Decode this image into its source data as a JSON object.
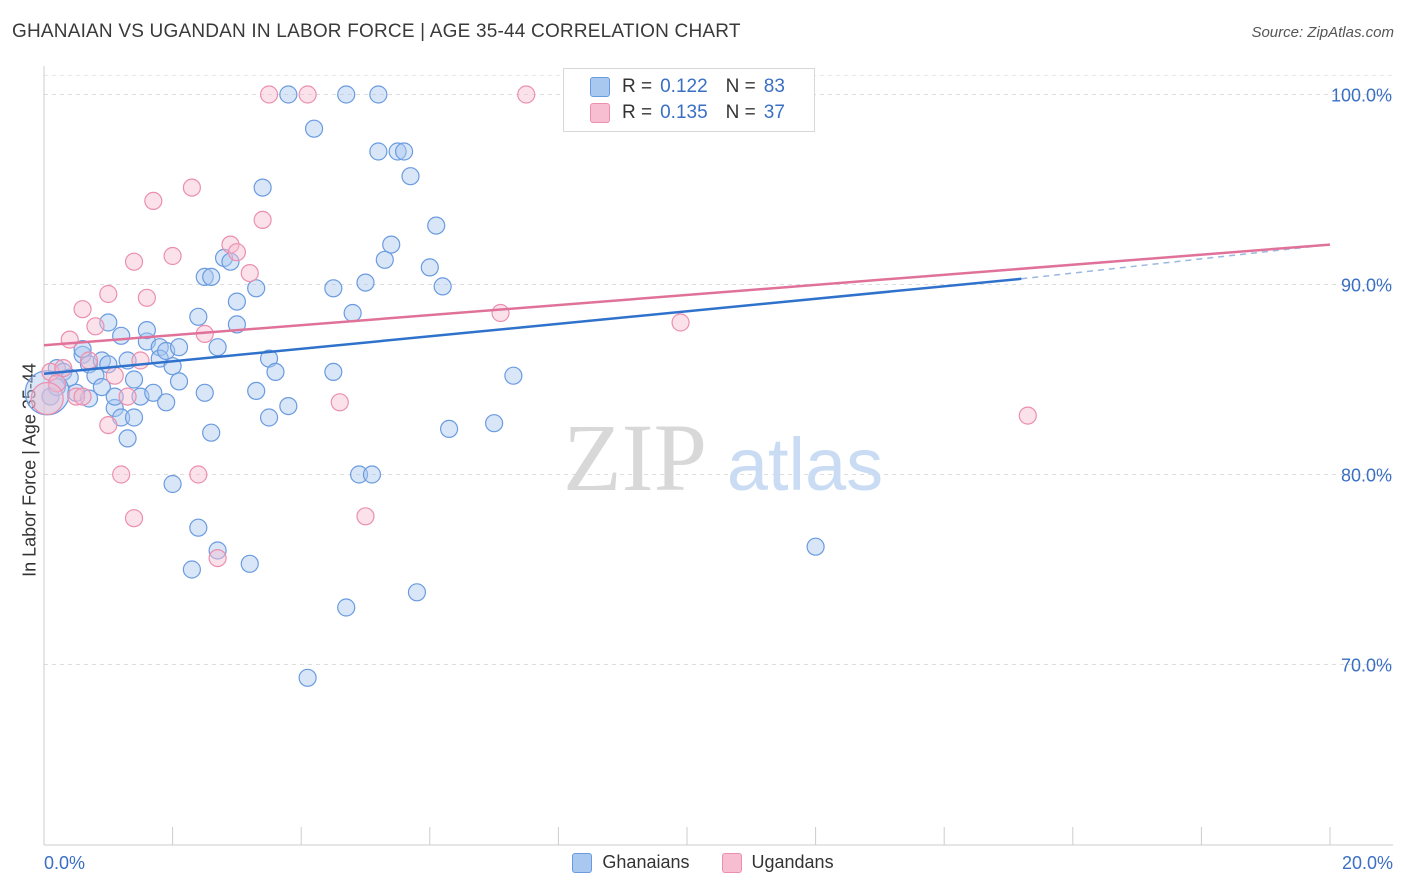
{
  "title": "GHANAIAN VS UGANDAN IN LABOR FORCE | AGE 35-44 CORRELATION CHART",
  "source": "Source: ZipAtlas.com",
  "watermark": {
    "zip": "ZIP",
    "atlas": "atlas"
  },
  "legend_top": [
    {
      "r_label": "R =",
      "r_value": "0.122",
      "n_label": "N =",
      "n_value": "83"
    },
    {
      "r_label": "R =",
      "r_value": "0.135",
      "n_label": "N =",
      "n_value": "37"
    }
  ],
  "colors": {
    "blue_fill": "#a8c8f0",
    "blue_stroke": "#6a9be0",
    "blue_line": "#2f72cc",
    "pink_fill": "#f7bdd0",
    "pink_stroke": "#ec8fae",
    "pink_line": "#e0729a",
    "tick_label": "#3a6fc4",
    "grid": "#dddddd"
  },
  "chart_data": {
    "type": "scatter",
    "title": "GHANAIAN VS UGANDAN IN LABOR FORCE | AGE 35-44 CORRELATION CHART",
    "xlabel": "",
    "ylabel": "In Labor Force | Age 35-44",
    "xlim": [
      0,
      20
    ],
    "ylim": [
      60.5,
      101.5
    ],
    "x_tick_labels": [
      "0.0%",
      "20.0%"
    ],
    "y_ticks": [
      70,
      80,
      90,
      100
    ],
    "y_tick_labels": [
      "70.0%",
      "80.0%",
      "90.0%",
      "100.0%"
    ],
    "grid": true,
    "legend_position": "top-center",
    "series": [
      {
        "name": "Ghanaians",
        "color": "#a8c8f0",
        "points": [
          [
            0.1,
            84.1
          ],
          [
            0.2,
            84.6
          ],
          [
            0.2,
            85.6
          ],
          [
            0.3,
            85.4
          ],
          [
            0.4,
            85.1
          ],
          [
            0.5,
            84.3
          ],
          [
            0.6,
            86.3
          ],
          [
            0.6,
            86.6
          ],
          [
            0.7,
            85.8
          ],
          [
            0.7,
            84.0
          ],
          [
            0.8,
            85.2
          ],
          [
            0.9,
            86.0
          ],
          [
            0.9,
            84.6
          ],
          [
            1.0,
            88.0
          ],
          [
            1.0,
            85.8
          ],
          [
            1.1,
            83.5
          ],
          [
            1.1,
            84.1
          ],
          [
            1.2,
            87.3
          ],
          [
            1.2,
            83.0
          ],
          [
            1.3,
            81.9
          ],
          [
            1.3,
            86.0
          ],
          [
            1.4,
            85.0
          ],
          [
            1.4,
            83.0
          ],
          [
            1.5,
            84.1
          ],
          [
            1.6,
            87.0
          ],
          [
            1.6,
            87.6
          ],
          [
            1.7,
            84.3
          ],
          [
            1.8,
            86.7
          ],
          [
            1.8,
            86.1
          ],
          [
            1.9,
            83.8
          ],
          [
            1.9,
            86.5
          ],
          [
            2.0,
            79.5
          ],
          [
            2.0,
            85.7
          ],
          [
            2.1,
            86.7
          ],
          [
            2.1,
            84.9
          ],
          [
            2.3,
            75.0
          ],
          [
            2.4,
            77.2
          ],
          [
            2.4,
            88.3
          ],
          [
            2.5,
            84.3
          ],
          [
            2.5,
            90.4
          ],
          [
            2.6,
            82.2
          ],
          [
            2.6,
            90.4
          ],
          [
            2.7,
            86.7
          ],
          [
            2.7,
            76.0
          ],
          [
            2.8,
            91.4
          ],
          [
            2.9,
            91.2
          ],
          [
            3.0,
            89.1
          ],
          [
            3.0,
            87.9
          ],
          [
            3.2,
            75.3
          ],
          [
            3.3,
            84.4
          ],
          [
            3.3,
            89.8
          ],
          [
            3.4,
            95.1
          ],
          [
            3.5,
            83.0
          ],
          [
            3.5,
            86.1
          ],
          [
            3.6,
            85.4
          ],
          [
            3.8,
            83.6
          ],
          [
            3.8,
            100.0
          ],
          [
            4.1,
            69.3
          ],
          [
            4.2,
            98.2
          ],
          [
            4.5,
            85.4
          ],
          [
            4.5,
            89.8
          ],
          [
            4.7,
            100.0
          ],
          [
            4.7,
            73.0
          ],
          [
            4.8,
            88.5
          ],
          [
            4.9,
            80.0
          ],
          [
            5.0,
            90.1
          ],
          [
            5.1,
            80.0
          ],
          [
            5.2,
            100.0
          ],
          [
            5.2,
            97.0
          ],
          [
            5.3,
            91.3
          ],
          [
            5.4,
            92.1
          ],
          [
            5.5,
            97.0
          ],
          [
            5.6,
            97.0
          ],
          [
            5.7,
            95.7
          ],
          [
            5.8,
            73.8
          ],
          [
            6.0,
            90.9
          ],
          [
            6.1,
            93.1
          ],
          [
            6.2,
            89.9
          ],
          [
            6.3,
            82.4
          ],
          [
            7.0,
            82.7
          ],
          [
            7.3,
            85.2
          ],
          [
            12.0,
            76.2
          ],
          [
            0.05,
            84.3
          ]
        ]
      },
      {
        "name": "Ugandans",
        "color": "#f7bdd0",
        "points": [
          [
            0.1,
            85.4
          ],
          [
            0.2,
            84.8
          ],
          [
            0.3,
            85.6
          ],
          [
            0.4,
            87.1
          ],
          [
            0.5,
            84.1
          ],
          [
            0.6,
            84.1
          ],
          [
            0.6,
            88.7
          ],
          [
            0.7,
            86.0
          ],
          [
            0.8,
            87.8
          ],
          [
            1.0,
            89.5
          ],
          [
            1.0,
            82.6
          ],
          [
            1.1,
            85.2
          ],
          [
            1.2,
            80.0
          ],
          [
            1.3,
            84.1
          ],
          [
            1.4,
            77.7
          ],
          [
            1.4,
            91.2
          ],
          [
            1.5,
            86.0
          ],
          [
            1.6,
            89.3
          ],
          [
            1.7,
            94.4
          ],
          [
            2.0,
            91.5
          ],
          [
            2.3,
            95.1
          ],
          [
            2.4,
            80.0
          ],
          [
            2.5,
            87.4
          ],
          [
            2.7,
            75.6
          ],
          [
            2.9,
            92.1
          ],
          [
            3.0,
            91.7
          ],
          [
            3.2,
            90.6
          ],
          [
            3.4,
            93.4
          ],
          [
            3.5,
            100.0
          ],
          [
            4.1,
            100.0
          ],
          [
            4.6,
            83.8
          ],
          [
            5.0,
            77.8
          ],
          [
            7.1,
            88.5
          ],
          [
            7.5,
            100.0
          ],
          [
            9.9,
            88.0
          ],
          [
            15.3,
            83.1
          ],
          [
            0.05,
            84.0
          ]
        ]
      }
    ],
    "trendlines": [
      {
        "series": "Ghanaians",
        "x": [
          0,
          15.2
        ],
        "y": [
          85.3,
          90.3
        ],
        "dashed_extension_to": [
          20,
          92.1
        ]
      },
      {
        "series": "Ugandans",
        "x": [
          0,
          20
        ],
        "y": [
          86.8,
          92.1
        ]
      }
    ]
  },
  "bottom_legend": [
    {
      "label": "Ghanaians"
    },
    {
      "label": "Ugandans"
    }
  ]
}
